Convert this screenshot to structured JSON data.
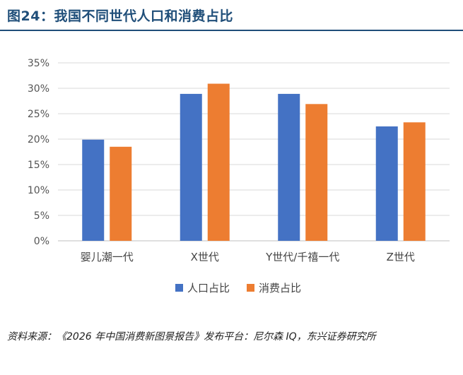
{
  "header": {
    "title": "图24：我国不同世代人口和消费占比"
  },
  "footer": {
    "source": "资料来源：《2026 年中国消费新图景报告》发布平台：尼尔森 IQ，东兴证券研究所"
  },
  "colors": {
    "title": "#1f4e79",
    "series_population": "#4472c4",
    "series_consumption": "#ed7d31",
    "grid": "#d9d9d9"
  },
  "chart_data": {
    "type": "bar",
    "categories": [
      "婴儿潮一代",
      "X世代",
      "Y世代/千禧一代",
      "Z世代"
    ],
    "series": [
      {
        "name": "人口占比",
        "values": [
          19.9,
          28.9,
          28.9,
          22.5
        ]
      },
      {
        "name": "消费占比",
        "values": [
          18.5,
          30.9,
          26.9,
          23.3
        ]
      }
    ],
    "yticks": [
      "0%",
      "5%",
      "10%",
      "15%",
      "20%",
      "25%",
      "30%",
      "35%"
    ],
    "ylim": [
      0,
      35
    ],
    "grid": true,
    "legend_position": "bottom"
  }
}
